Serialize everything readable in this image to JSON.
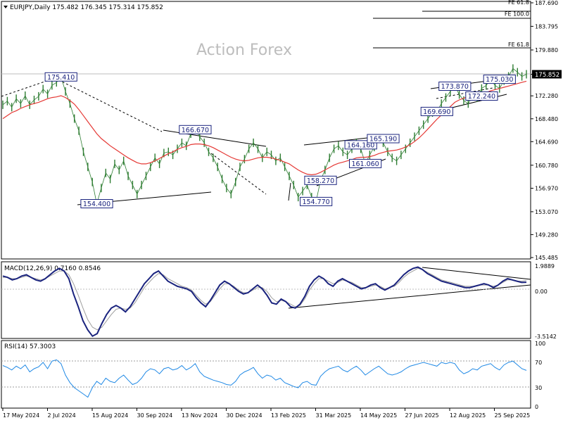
{
  "header": {
    "symbol_line": "EURJPY,Daily  175.482 176.345 175.314 175.852"
  },
  "watermark": "Action Forex",
  "colors": {
    "price": "#2e7d32",
    "ma": "#e53935",
    "macd": "#1a237e",
    "signal": "#9e9e9e",
    "rsi": "#1e88e5",
    "trendline": "#000000",
    "label_border": "#1a237e",
    "current_price_bg": "#000000"
  },
  "chart_data": [
    {
      "type": "line",
      "panel": "price",
      "x_ticks": [
        "17 May 2024",
        "2 Jul 2024",
        "15 Aug 2024",
        "30 Sep 2024",
        "13 Nov 2024",
        "30 Dec 2024",
        "13 Feb 2025",
        "31 Mar 2025",
        "14 May 2025",
        "27 Jun 2025",
        "12 Aug 2025",
        "25 Sep 2025"
      ],
      "y_ticks": [
        "187.690",
        "183.795",
        "179.880",
        "175.852",
        "172.280",
        "168.480",
        "164.690",
        "160.780",
        "156.970",
        "153.070",
        "149.280",
        "145.485"
      ],
      "ylim": [
        145.485,
        187.69
      ],
      "current_price": "175.852",
      "series": [
        {
          "role": "price",
          "values": [
            170.8,
            171.4,
            170.4,
            171.8,
            171.0,
            172.3,
            170.8,
            171.6,
            172.2,
            173.4,
            172.6,
            174.0,
            174.5,
            175.41,
            173.0,
            171.0,
            168.5,
            166.5,
            163.0,
            160.5,
            158.0,
            154.4,
            157.0,
            159.5,
            158.5,
            161.0,
            160.0,
            161.5,
            159.0,
            157.5,
            156.0,
            157.5,
            159.0,
            160.5,
            162.0,
            161.0,
            162.8,
            163.0,
            162.5,
            163.5,
            164.5,
            164.0,
            166.0,
            166.67,
            165.5,
            164.5,
            163.0,
            162.0,
            160.5,
            158.5,
            157.0,
            156.0,
            158.0,
            160.5,
            161.8,
            163.5,
            164.5,
            163.5,
            162.0,
            163.0,
            162.5,
            161.5,
            162.0,
            160.5,
            159.0,
            157.5,
            155.5,
            156.5,
            157.5,
            155.5,
            154.77,
            158.27,
            160.0,
            162.0,
            163.5,
            164.0,
            163.0,
            162.5,
            163.5,
            164.5,
            163.5,
            161.06,
            162.5,
            163.8,
            165.19,
            164.5,
            163.0,
            162.0,
            161.5,
            162.5,
            163.5,
            164.5,
            165.5,
            166.5,
            167.5,
            168.5,
            169.5,
            169.69,
            171.0,
            172.0,
            173.0,
            173.87,
            172.5,
            171.5,
            171.0,
            172.24,
            172.0,
            173.5,
            174.0,
            175.03,
            174.0,
            173.5,
            174.8,
            175.5,
            176.8,
            176.2,
            175.5,
            175.852
          ]
        },
        {
          "role": "ma",
          "values": [
            168.5,
            169.0,
            169.5,
            169.8,
            170.2,
            170.5,
            170.8,
            171.0,
            171.2,
            171.5,
            171.8,
            172.0,
            172.1,
            172.3,
            172.0,
            171.5,
            170.9,
            170.0,
            169.0,
            168.0,
            167.0,
            166.0,
            165.2,
            164.6,
            164.0,
            163.5,
            163.0,
            162.5,
            162.0,
            161.6,
            161.2,
            161.0,
            161.0,
            161.2,
            161.5,
            161.9,
            162.3,
            162.7,
            163.0,
            163.4,
            163.7,
            163.9,
            164.2,
            164.3,
            164.3,
            164.2,
            164.0,
            163.7,
            163.3,
            162.9,
            162.5,
            162.1,
            161.8,
            161.6,
            161.5,
            161.6,
            161.8,
            162.0,
            162.1,
            162.1,
            162.0,
            161.8,
            161.6,
            161.3,
            161.0,
            160.5,
            160.0,
            159.6,
            159.3,
            159.2,
            159.3,
            159.6,
            160.0,
            160.4,
            160.8,
            161.1,
            161.3,
            161.5,
            161.7,
            162.0,
            162.1,
            162.1,
            162.2,
            162.4,
            162.7,
            162.9,
            163.1,
            163.2,
            163.3,
            163.5,
            163.8,
            164.2,
            164.7,
            165.3,
            166.0,
            166.8,
            167.6,
            168.4,
            169.1,
            169.8,
            170.5,
            171.2,
            171.6,
            171.9,
            172.1,
            172.3,
            172.4,
            172.6,
            172.8,
            173.1,
            173.3,
            173.5,
            173.7,
            173.9,
            174.1,
            174.3,
            174.5,
            174.7
          ]
        }
      ],
      "annotations": [
        {
          "label": "175.410",
          "x": 13,
          "y": 175.41
        },
        {
          "label": "154.400",
          "x": 21,
          "y": 154.4
        },
        {
          "label": "166.670",
          "x": 43,
          "y": 166.67
        },
        {
          "label": "164.160",
          "x": 80,
          "y": 164.16
        },
        {
          "label": "165.190",
          "x": 85,
          "y": 165.19
        },
        {
          "label": "161.060",
          "x": 81,
          "y": 161.06
        },
        {
          "label": "158.270",
          "x": 71,
          "y": 158.27
        },
        {
          "label": "154.770",
          "x": 70,
          "y": 154.77
        },
        {
          "label": "173.870",
          "x": 101,
          "y": 173.87
        },
        {
          "label": "169.690",
          "x": 97,
          "y": 169.69
        },
        {
          "label": "175.030",
          "x": 111,
          "y": 175.03
        },
        {
          "label": "172.240",
          "x": 107,
          "y": 172.24
        },
        {
          "label": "FE 61.8",
          "x": 117,
          "y": 180.2
        },
        {
          "label": "FE 100.0",
          "x": 117,
          "y": 185.3
        },
        {
          "label": "FE 61.8",
          "x": 117,
          "y": 187.2
        }
      ]
    },
    {
      "type": "line",
      "panel": "macd",
      "title": "MACD(12,26,9) 0.7160 0.8546",
      "y_ticks": [
        "1.9889",
        "0.00",
        "-3.5142"
      ],
      "ylim": [
        -3.5142,
        1.9889
      ],
      "series": [
        {
          "role": "macd",
          "values": [
            1.2,
            1.1,
            0.9,
            1.0,
            1.2,
            1.3,
            1.1,
            0.9,
            0.8,
            1.0,
            1.3,
            1.6,
            1.8,
            1.6,
            1.0,
            -0.2,
            -1.2,
            -2.3,
            -3.0,
            -3.5,
            -3.3,
            -2.5,
            -1.8,
            -1.3,
            -1.1,
            -1.3,
            -1.6,
            -1.2,
            -0.6,
            0.0,
            0.6,
            1.0,
            1.4,
            1.6,
            1.2,
            0.8,
            0.6,
            0.4,
            0.3,
            0.2,
            0.0,
            -0.5,
            -0.9,
            -1.2,
            -0.7,
            -0.1,
            0.5,
            0.8,
            0.6,
            0.3,
            0.0,
            -0.2,
            -0.1,
            0.2,
            0.5,
            0.2,
            -0.3,
            -0.9,
            -1.0,
            -0.6,
            -0.8,
            -1.2,
            -1.3,
            -1.0,
            -0.4,
            0.4,
            0.9,
            1.2,
            1.0,
            0.6,
            0.4,
            0.8,
            1.0,
            0.8,
            0.6,
            0.4,
            0.2,
            0.3,
            0.5,
            0.6,
            0.3,
            0.1,
            0.3,
            0.5,
            0.9,
            1.3,
            1.6,
            1.8,
            1.9,
            1.7,
            1.4,
            1.2,
            1.0,
            0.8,
            0.7,
            0.6,
            0.5,
            0.4,
            0.3,
            0.3,
            0.4,
            0.5,
            0.6,
            0.5,
            0.3,
            0.5,
            0.8,
            1.0,
            0.9,
            0.8,
            0.7,
            0.716
          ]
        },
        {
          "role": "signal",
          "values": [
            1.1,
            1.1,
            1.0,
            1.0,
            1.1,
            1.2,
            1.1,
            1.0,
            0.9,
            1.0,
            1.2,
            1.4,
            1.6,
            1.6,
            1.3,
            0.6,
            -0.3,
            -1.3,
            -2.2,
            -2.8,
            -3.0,
            -2.8,
            -2.3,
            -1.8,
            -1.4,
            -1.3,
            -1.4,
            -1.3,
            -0.9,
            -0.3,
            0.3,
            0.7,
            1.1,
            1.4,
            1.3,
            1.0,
            0.8,
            0.6,
            0.4,
            0.3,
            0.1,
            -0.3,
            -0.7,
            -1.0,
            -0.8,
            -0.3,
            0.2,
            0.6,
            0.6,
            0.4,
            0.1,
            -0.1,
            -0.1,
            0.1,
            0.3,
            0.3,
            0.0,
            -0.5,
            -0.8,
            -0.7,
            -0.8,
            -1.0,
            -1.2,
            -1.1,
            -0.6,
            0.1,
            0.6,
            1.0,
            1.0,
            0.8,
            0.6,
            0.7,
            0.9,
            0.8,
            0.7,
            0.5,
            0.3,
            0.3,
            0.4,
            0.5,
            0.4,
            0.2,
            0.3,
            0.4,
            0.7,
            1.1,
            1.4,
            1.6,
            1.8,
            1.7,
            1.5,
            1.3,
            1.1,
            0.9,
            0.8,
            0.7,
            0.6,
            0.5,
            0.4,
            0.4,
            0.4,
            0.5,
            0.5,
            0.5,
            0.4,
            0.5,
            0.7,
            0.9,
            0.9,
            0.8,
            0.8,
            0.8546
          ]
        }
      ]
    },
    {
      "type": "line",
      "panel": "rsi",
      "title": "RSI(14) 57.3003",
      "y_ticks": [
        "100",
        "70",
        "30",
        "0"
      ],
      "ylim": [
        0,
        100
      ],
      "series": [
        {
          "role": "rsi",
          "values": [
            65,
            62,
            58,
            64,
            60,
            66,
            55,
            60,
            63,
            70,
            60,
            72,
            74,
            68,
            50,
            38,
            30,
            25,
            20,
            15,
            30,
            40,
            35,
            45,
            40,
            38,
            45,
            50,
            42,
            35,
            38,
            45,
            55,
            60,
            58,
            52,
            60,
            62,
            58,
            60,
            65,
            58,
            62,
            68,
            55,
            48,
            45,
            42,
            40,
            38,
            35,
            34,
            40,
            50,
            55,
            58,
            62,
            52,
            45,
            50,
            48,
            42,
            45,
            38,
            35,
            32,
            30,
            38,
            40,
            35,
            34,
            48,
            55,
            60,
            62,
            64,
            58,
            55,
            60,
            64,
            58,
            50,
            55,
            60,
            64,
            58,
            52,
            50,
            52,
            55,
            60,
            64,
            66,
            68,
            70,
            68,
            66,
            64,
            70,
            68,
            70,
            68,
            58,
            52,
            55,
            60,
            58,
            64,
            66,
            68,
            62,
            58,
            66,
            70,
            72,
            66,
            60,
            57.3
          ]
        }
      ]
    }
  ]
}
